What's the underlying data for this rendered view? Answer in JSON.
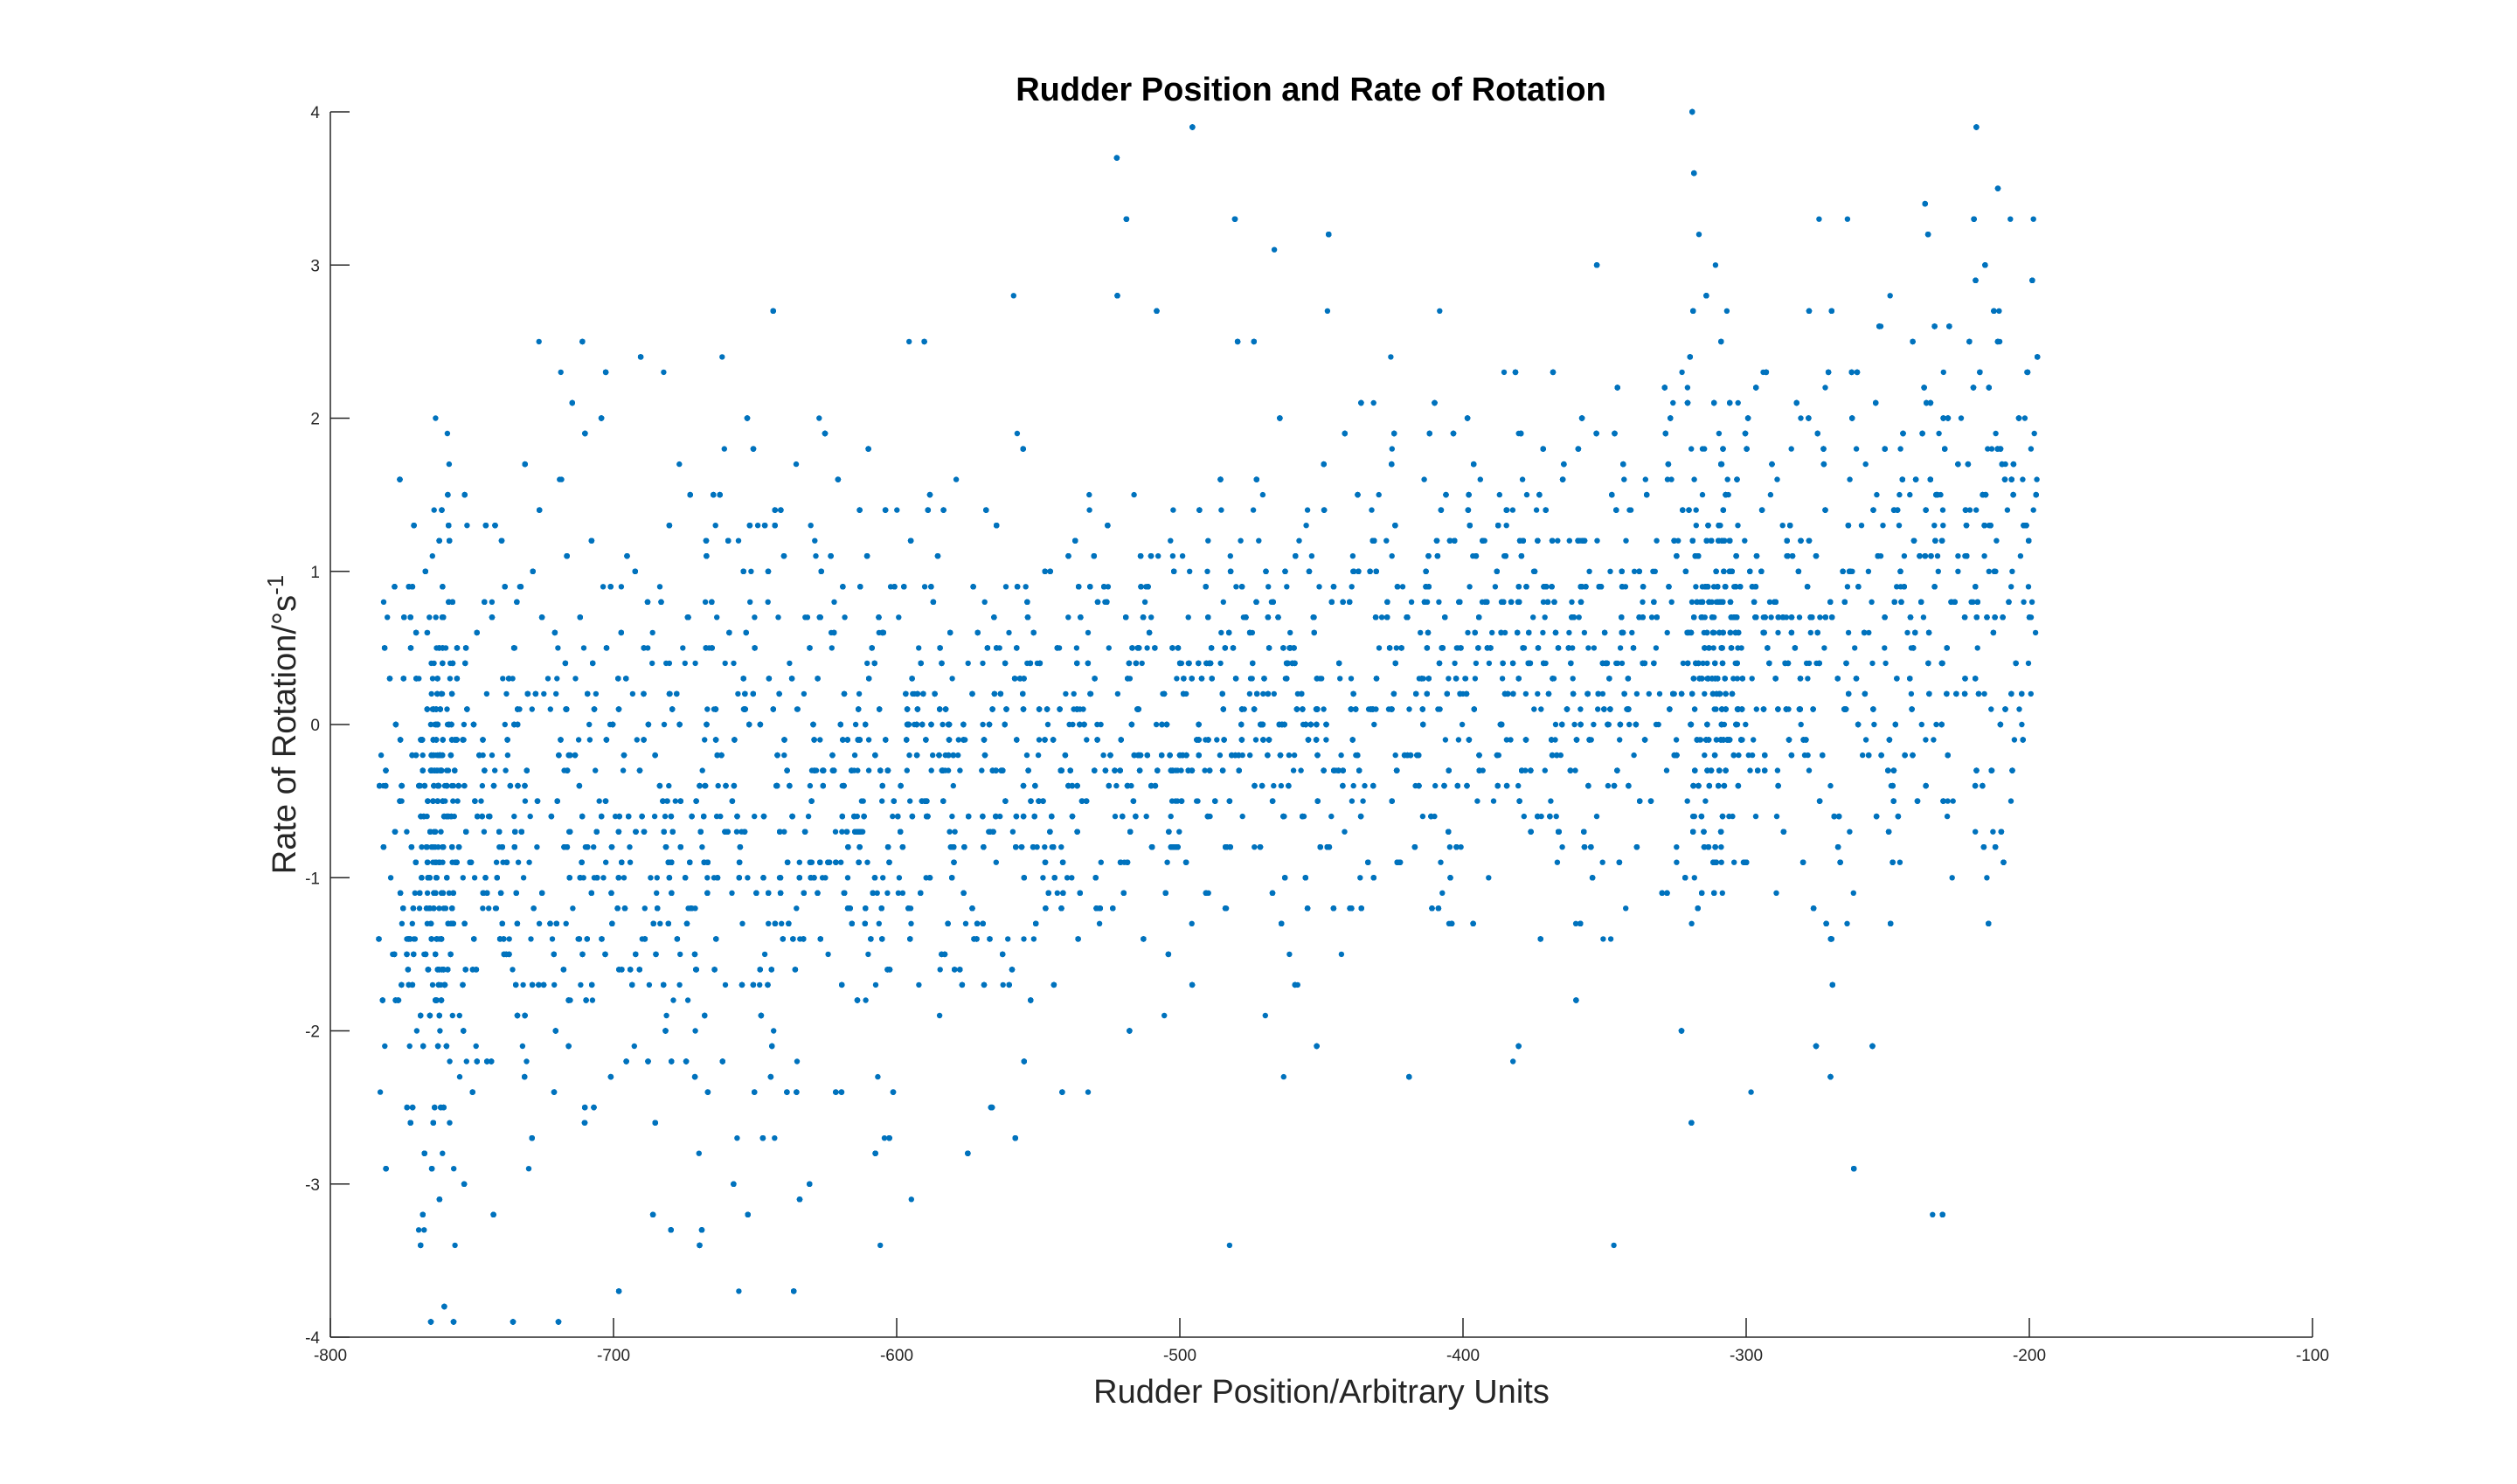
{
  "chart_data": {
    "type": "scatter",
    "title": "Rudder Position and Rate of Rotation",
    "xlabel": "Rudder Position/Arbitrary Units",
    "ylabel_main": "Rate of Rotation/°s",
    "ylabel_sup": "-1",
    "xlim": [
      -800,
      -100
    ],
    "ylim": [
      -4,
      4
    ],
    "xticks": [
      -800,
      -700,
      -600,
      -500,
      -400,
      -300,
      -200,
      -100
    ],
    "yticks": [
      -4,
      -3,
      -2,
      -1,
      0,
      1,
      2,
      3,
      4
    ],
    "marker_color": "#0072BD",
    "grid": false,
    "legend": "none",
    "x_range_of_data": [
      -783,
      -197
    ],
    "y_quantization_step": 0.1,
    "density_description_points": [
      {
        "x": -780,
        "y": 0.2
      },
      {
        "x": -760,
        "y": -1.5
      },
      {
        "x": -760,
        "y": -2.5
      },
      {
        "x": -700,
        "y": -1.0
      },
      {
        "x": -650,
        "y": -0.8
      },
      {
        "x": -600,
        "y": -0.5
      },
      {
        "x": -550,
        "y": -0.3
      },
      {
        "x": -500,
        "y": 0.0
      },
      {
        "x": -450,
        "y": 0.2
      },
      {
        "x": -400,
        "y": 0.3
      },
      {
        "x": -350,
        "y": 0.4
      },
      {
        "x": -310,
        "y": -1.5
      },
      {
        "x": -300,
        "y": 0.6
      },
      {
        "x": -250,
        "y": 0.8
      },
      {
        "x": -200,
        "y": 1.2
      }
    ]
  }
}
